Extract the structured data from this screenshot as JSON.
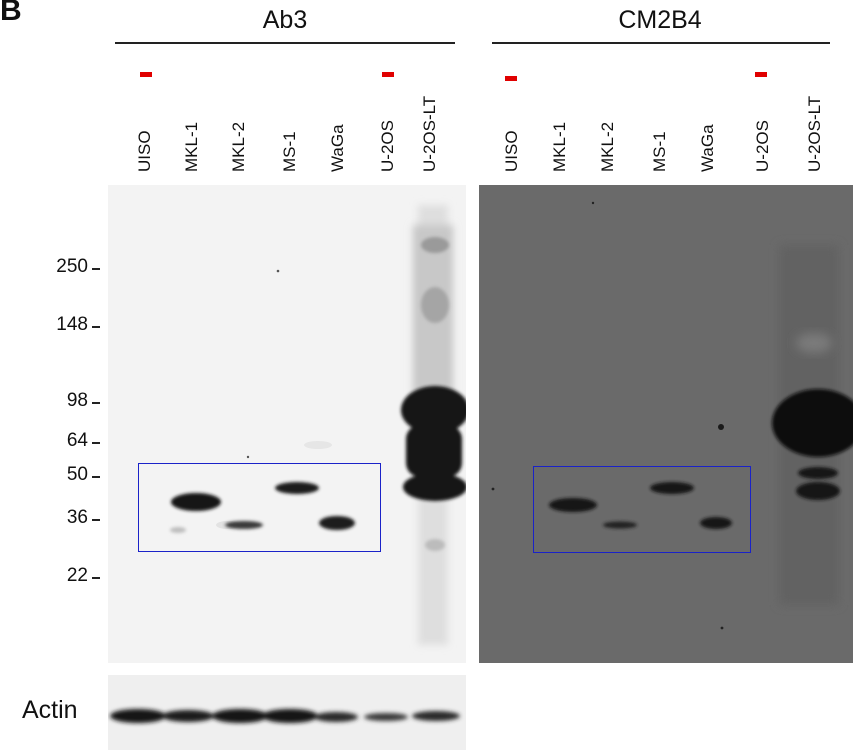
{
  "panel_letter": "B",
  "groups": [
    {
      "title": "Ab3"
    },
    {
      "title": "CM2B4"
    }
  ],
  "lanes": [
    "UISO",
    "MKL-1",
    "MKL-2",
    "MS-1",
    "WaGa",
    "U-2OS",
    "U-2OS-LT"
  ],
  "negative_marker_lanes": [
    "UISO",
    "U-2OS"
  ],
  "mw_markers": [
    "250",
    "148",
    "98",
    "64",
    "50",
    "36",
    "22"
  ],
  "actin_label": "Actin",
  "colors": {
    "negative_marker": "#e00000",
    "box": "#1a22c8",
    "left_blot_bg": "#f3f3f3",
    "right_blot_bg": "#6a6a6a",
    "band": "#141414"
  }
}
